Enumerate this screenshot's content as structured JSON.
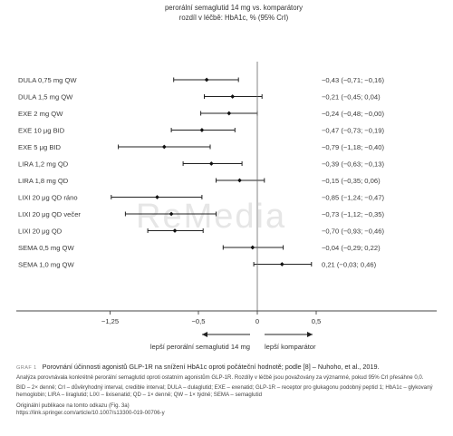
{
  "header": {
    "line1": "perorální semaglutid 14 mg vs. komparátory",
    "line2": "rozdíl v léčbě: HbA1c, % (95% CrI)"
  },
  "chart_data": {
    "type": "forest",
    "xlim": [
      -1.5,
      0.75
    ],
    "ticks": [
      {
        "value": -1.25,
        "label": "−1,25"
      },
      {
        "value": -0.5,
        "label": "−0,5"
      },
      {
        "value": 0,
        "label": "0"
      },
      {
        "value": 0.5,
        "label": "0,5"
      }
    ],
    "rows": [
      {
        "label": "DULA 0,75 mg QW",
        "est": -0.43,
        "lo": -0.71,
        "hi": -0.16,
        "text": "−0,43 (−0,71; −0,16)"
      },
      {
        "label": "DULA 1,5 mg QW",
        "est": -0.21,
        "lo": -0.45,
        "hi": 0.04,
        "text": "−0,21 (−0,45; 0,04)"
      },
      {
        "label": "EXE 2 mg QW",
        "est": -0.24,
        "lo": -0.48,
        "hi": -0.0,
        "text": "−0,24 (−0,48; −0,00)"
      },
      {
        "label": "EXE 10 μg BID",
        "est": -0.47,
        "lo": -0.73,
        "hi": -0.19,
        "text": "−0,47 (−0,73; −0,19)"
      },
      {
        "label": "EXE 5 μg BID",
        "est": -0.79,
        "lo": -1.18,
        "hi": -0.4,
        "text": "−0,79 (−1,18; −0,40)"
      },
      {
        "label": "LIRA 1,2 mg QD",
        "est": -0.39,
        "lo": -0.63,
        "hi": -0.13,
        "text": "−0,39 (−0,63; −0,13)"
      },
      {
        "label": "LIRA 1,8 mg QD",
        "est": -0.15,
        "lo": -0.35,
        "hi": 0.06,
        "text": "−0,15 (−0,35; 0,06)"
      },
      {
        "label": "LIXI 20 μg QD ráno",
        "est": -0.85,
        "lo": -1.24,
        "hi": -0.47,
        "text": "−0,85 (−1,24; −0,47)"
      },
      {
        "label": "LIXI 20 μg QD večer",
        "est": -0.73,
        "lo": -1.12,
        "hi": -0.35,
        "text": "−0,73 (−1,12; −0,35)"
      },
      {
        "label": "LIXI 20 μg QD",
        "est": -0.7,
        "lo": -0.93,
        "hi": -0.46,
        "text": "−0,70 (−0,93; −0,46)"
      },
      {
        "label": "SEMA 0,5 mg QW",
        "est": -0.04,
        "lo": -0.29,
        "hi": 0.22,
        "text": "−0,04 (−0,29; 0,22)"
      },
      {
        "label": "SEMA 1,0 mg QW",
        "est": 0.21,
        "lo": -0.03,
        "hi": 0.46,
        "text": "0,21 (−0,03; 0,46)"
      }
    ],
    "favors_left": "lepší perorální semaglutid 14 mg",
    "favors_right": "lepší komparátor"
  },
  "watermark": "ReMedia",
  "caption": {
    "tag": "GRAF 1",
    "title": "Porovnání účinnosti agonistů GLP-1R na snížení HbA1c oproti počáteční hodnotě; podle [8] – Nuhoho, et al., 2019.",
    "text1": "Analýza porovnávala konkrétně perorální semaglutid oproti ostatním agonistům GLP-1R. Rozdíly v léčbě jsou považovány za významné, pokud 95% CrI přesáhne 0,0.",
    "text2": "BID – 2× denně; CrI – důvěryhodný interval, credible interval; DULA – dulaglutid; EXE – exenatid; GLP-1R – receptor pro glukagonu podobný peptid 1; HbA1c – glykovaný hemoglobin; LIRA – liraglutid; LIXI – lixisenatid; QD – 1× denně; QW – 1× týdně; SEMA – semaglutid",
    "text3": "Originální publikace na tomto odkazu (Fig. 3a)",
    "text4": "https://link.springer.com/article/10.1007/s13300-019-00706-y"
  }
}
